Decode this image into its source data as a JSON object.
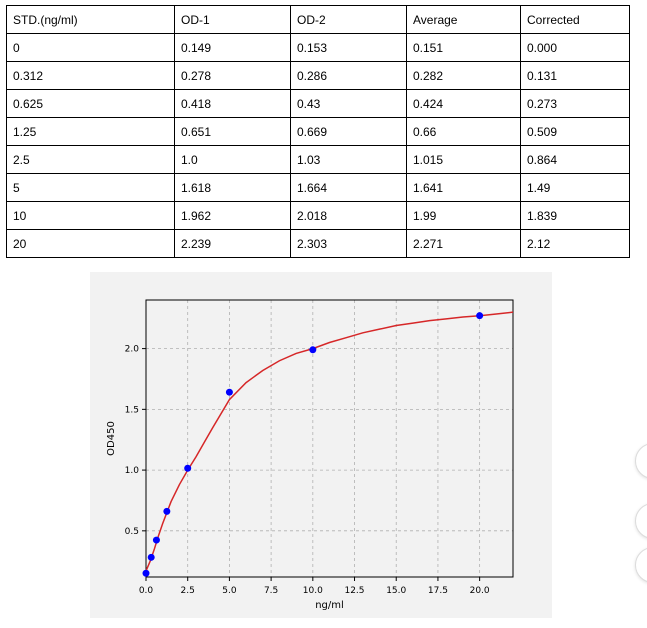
{
  "table": {
    "headers": [
      "STD.(ng/ml)",
      "OD-1",
      "OD-2",
      "Average",
      "Corrected"
    ],
    "rows": [
      [
        "0",
        "0.149",
        "0.153",
        "0.151",
        "0.000"
      ],
      [
        "0.312",
        "0.278",
        "0.286",
        "0.282",
        "0.131"
      ],
      [
        "0.625",
        "0.418",
        "0.43",
        "0.424",
        "0.273"
      ],
      [
        "1.25",
        "0.651",
        "0.669",
        "0.66",
        "0.509"
      ],
      [
        "2.5",
        "1.0",
        "1.03",
        "1.015",
        "0.864"
      ],
      [
        "5",
        "1.618",
        "1.664",
        "1.641",
        "1.49"
      ],
      [
        "10",
        "1.962",
        "2.018",
        "1.99",
        "1.839"
      ],
      [
        "20",
        "2.239",
        "2.303",
        "2.271",
        "2.12"
      ]
    ]
  },
  "chart_data": {
    "type": "scatter",
    "xlabel": "ng/ml",
    "ylabel": "OD450",
    "xlim": [
      0,
      22
    ],
    "ylim": [
      0.12,
      2.4
    ],
    "xticks": [
      "0.0",
      "2.5",
      "5.0",
      "7.5",
      "10.0",
      "12.5",
      "15.0",
      "17.5",
      "20.0"
    ],
    "yticks": [
      "0.5",
      "1.0",
      "1.5",
      "2.0"
    ],
    "grid": true,
    "points": {
      "x": [
        0,
        0.312,
        0.625,
        1.25,
        2.5,
        5,
        10,
        20
      ],
      "y": [
        0.151,
        0.282,
        0.424,
        0.66,
        1.015,
        1.641,
        1.99,
        2.271
      ]
    },
    "curve": {
      "x": [
        0,
        0.25,
        0.5,
        0.75,
        1,
        1.5,
        2,
        2.5,
        3,
        3.5,
        4,
        5,
        6,
        7,
        8,
        9,
        10,
        11,
        12,
        13,
        14,
        15,
        16,
        17,
        18,
        19,
        20,
        21,
        22
      ],
      "y": [
        0.17,
        0.25,
        0.35,
        0.46,
        0.56,
        0.74,
        0.88,
        1.0,
        1.11,
        1.23,
        1.35,
        1.58,
        1.72,
        1.82,
        1.9,
        1.96,
        2.0,
        2.05,
        2.09,
        2.13,
        2.16,
        2.19,
        2.21,
        2.23,
        2.245,
        2.26,
        2.27,
        2.285,
        2.3
      ]
    },
    "colors": {
      "points": "#0000ff",
      "curve": "#d62728",
      "grid": "#b0b0b0"
    }
  },
  "side_buttons": [
    "circle-button",
    "circle-button",
    "circle-button"
  ]
}
